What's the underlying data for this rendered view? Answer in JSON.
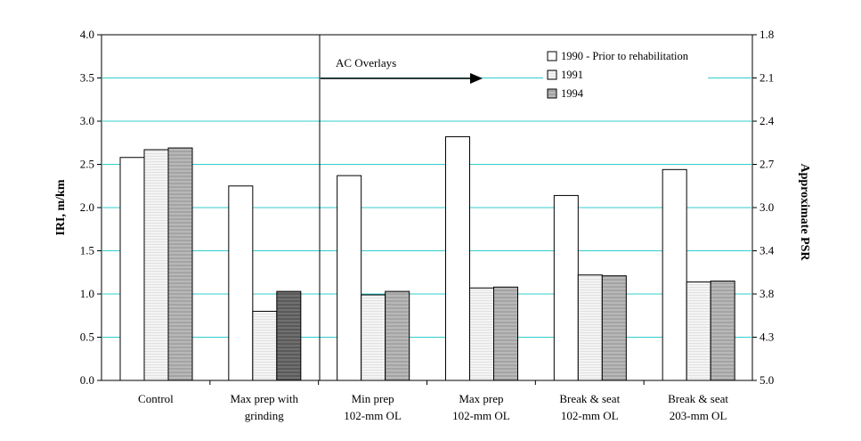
{
  "chart_data": {
    "type": "bar",
    "title": "",
    "categories": [
      [
        "Control"
      ],
      [
        "Max prep with",
        "grinding"
      ],
      [
        "Min prep",
        "102-mm OL"
      ],
      [
        "Max prep",
        "102-mm OL"
      ],
      [
        "Break & seat",
        "102-mm OL"
      ],
      [
        "Break & seat",
        "203-mm OL"
      ]
    ],
    "series": [
      {
        "name": "1990 - Prior to rehabilitation",
        "fill": "#ffffff",
        "pattern": "none",
        "values": [
          2.58,
          2.25,
          2.37,
          2.82,
          2.14,
          2.44
        ]
      },
      {
        "name": "1991",
        "fill": "#f2f2f2",
        "pattern": "fine-hatch",
        "values": [
          2.67,
          0.8,
          0.99,
          1.07,
          1.22,
          1.14
        ]
      },
      {
        "name": "1994",
        "fill": "#b3b3b3",
        "pattern": "horizontal-lines",
        "values": [
          2.69,
          1.03,
          1.03,
          1.08,
          1.21,
          1.15
        ]
      }
    ],
    "series_1994_dark_fill_category": 1,
    "series_1994_dark_fill": "#6e6e6e",
    "ylabel": "IRI, m/km",
    "ylim": [
      0,
      4.0
    ],
    "yticks": [
      "0.0",
      "0.5",
      "1.0",
      "1.5",
      "2.0",
      "2.5",
      "3.0",
      "3.5",
      "4.0"
    ],
    "y2label": "Approximate PSR",
    "y2ticks": [
      "1.8",
      "2.1",
      "2.4",
      "2.7",
      "3.0",
      "3.4",
      "3.8",
      "4.3",
      "5.0"
    ],
    "grid": true,
    "grid_color": "#33cccc",
    "legend_position": "top-right",
    "annotation": {
      "text": "AC Overlays",
      "arrow": "right",
      "divider_after_category": 1
    }
  }
}
